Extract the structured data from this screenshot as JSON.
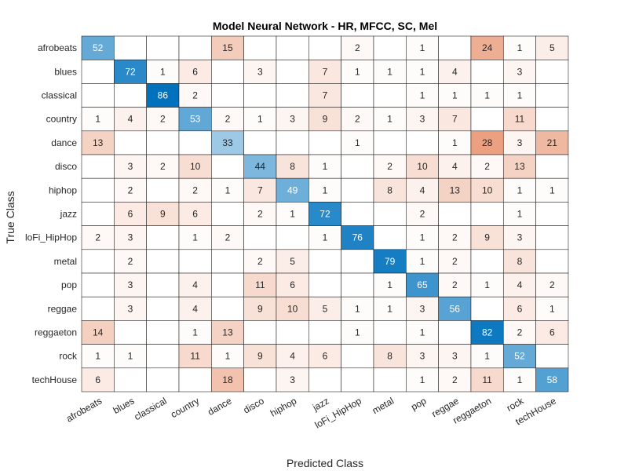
{
  "chart_data": {
    "type": "heatmap",
    "title": "Model  Neural Network - HR, MFCC, SC, Mel",
    "xlabel": "Predicted Class",
    "ylabel": "True Class",
    "classes": [
      "afrobeats",
      "blues",
      "classical",
      "country",
      "dance",
      "disco",
      "hiphop",
      "jazz",
      "loFi_HipHop",
      "metal",
      "pop",
      "reggae",
      "reggaeton",
      "rock",
      "techHouse"
    ],
    "matrix": [
      [
        52,
        null,
        null,
        null,
        15,
        null,
        null,
        null,
        2,
        null,
        1,
        null,
        24,
        1,
        5
      ],
      [
        null,
        72,
        1,
        6,
        null,
        3,
        null,
        7,
        1,
        1,
        1,
        4,
        null,
        3,
        null
      ],
      [
        null,
        null,
        86,
        2,
        null,
        null,
        null,
        7,
        null,
        null,
        1,
        1,
        1,
        1,
        null
      ],
      [
        1,
        4,
        2,
        53,
        2,
        1,
        3,
        9,
        2,
        1,
        3,
        7,
        null,
        11,
        null
      ],
      [
        13,
        null,
        null,
        null,
        33,
        null,
        null,
        null,
        1,
        null,
        null,
        1,
        28,
        3,
        21
      ],
      [
        null,
        3,
        2,
        10,
        null,
        44,
        8,
        1,
        null,
        2,
        10,
        4,
        2,
        13,
        null
      ],
      [
        null,
        2,
        null,
        2,
        1,
        7,
        49,
        1,
        null,
        8,
        4,
        13,
        10,
        1,
        1
      ],
      [
        null,
        6,
        9,
        6,
        null,
        2,
        1,
        72,
        null,
        null,
        2,
        null,
        null,
        1,
        null
      ],
      [
        2,
        3,
        null,
        1,
        2,
        null,
        null,
        1,
        76,
        null,
        1,
        2,
        9,
        3,
        null
      ],
      [
        null,
        2,
        null,
        null,
        null,
        2,
        5,
        null,
        null,
        79,
        1,
        2,
        null,
        8,
        null
      ],
      [
        null,
        3,
        null,
        4,
        null,
        11,
        6,
        null,
        null,
        1,
        65,
        2,
        1,
        4,
        2
      ],
      [
        null,
        3,
        null,
        4,
        null,
        9,
        10,
        5,
        1,
        1,
        3,
        56,
        null,
        6,
        1
      ],
      [
        14,
        null,
        null,
        1,
        13,
        null,
        null,
        null,
        1,
        null,
        1,
        null,
        82,
        2,
        6
      ],
      [
        1,
        1,
        null,
        11,
        1,
        9,
        4,
        6,
        null,
        8,
        3,
        3,
        1,
        52,
        null
      ],
      [
        6,
        null,
        null,
        null,
        18,
        null,
        3,
        null,
        null,
        null,
        1,
        2,
        11,
        1,
        58
      ]
    ],
    "colors": {
      "diagonal_max": "#0072BD",
      "offdiagonal_max": "#D95319",
      "grid": "#262626",
      "background": "#ffffff"
    }
  }
}
